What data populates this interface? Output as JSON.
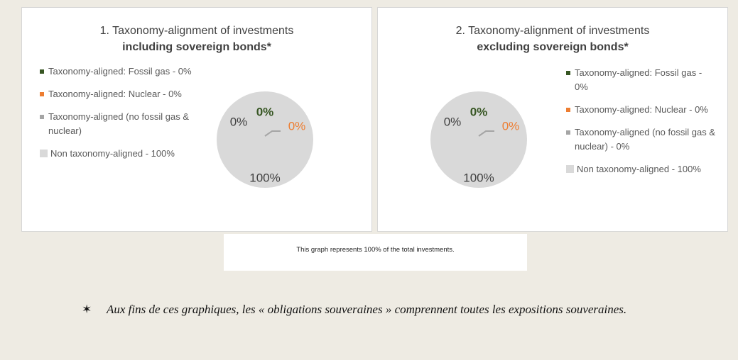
{
  "chart_data": [
    {
      "type": "pie",
      "title": "1. Taxonomy-alignment of investments",
      "subtitle": "including sovereign bonds*",
      "categories": [
        "Taxonomy-aligned: Fossil gas - 0%",
        "Taxonomy-aligned: Nuclear - 0%",
        "Taxonomy-aligned (no fossil gas & nuclear)",
        "Non taxonomy-aligned - 100%"
      ],
      "values": [
        0,
        0,
        0,
        100
      ],
      "value_labels": [
        "0%",
        "0%",
        "0%",
        "100%"
      ],
      "colors": [
        "#375623",
        "#ed7d31",
        "#a5a5a5",
        "#d9d9d9"
      ],
      "legend": "left"
    },
    {
      "type": "pie",
      "title": "2. Taxonomy-alignment of investments",
      "subtitle": "excluding sovereign bonds*",
      "categories": [
        "Taxonomy-aligned: Fossil gas - 0%",
        "Taxonomy-aligned: Nuclear - 0%",
        "Taxonomy-aligned (no fossil gas & nuclear) - 0%",
        "Non taxonomy-aligned - 100%"
      ],
      "values": [
        0,
        0,
        0,
        100
      ],
      "value_labels": [
        "0%",
        "0%",
        "0%",
        "100%"
      ],
      "colors": [
        "#375623",
        "#ed7d31",
        "#a5a5a5",
        "#d9d9d9"
      ],
      "legend": "right"
    }
  ],
  "caption": "This graph represents 100% of the total investments.",
  "footnote": "Aux fins de ces graphiques, les « obligations souveraines » comprennent toutes les expositions souveraines."
}
